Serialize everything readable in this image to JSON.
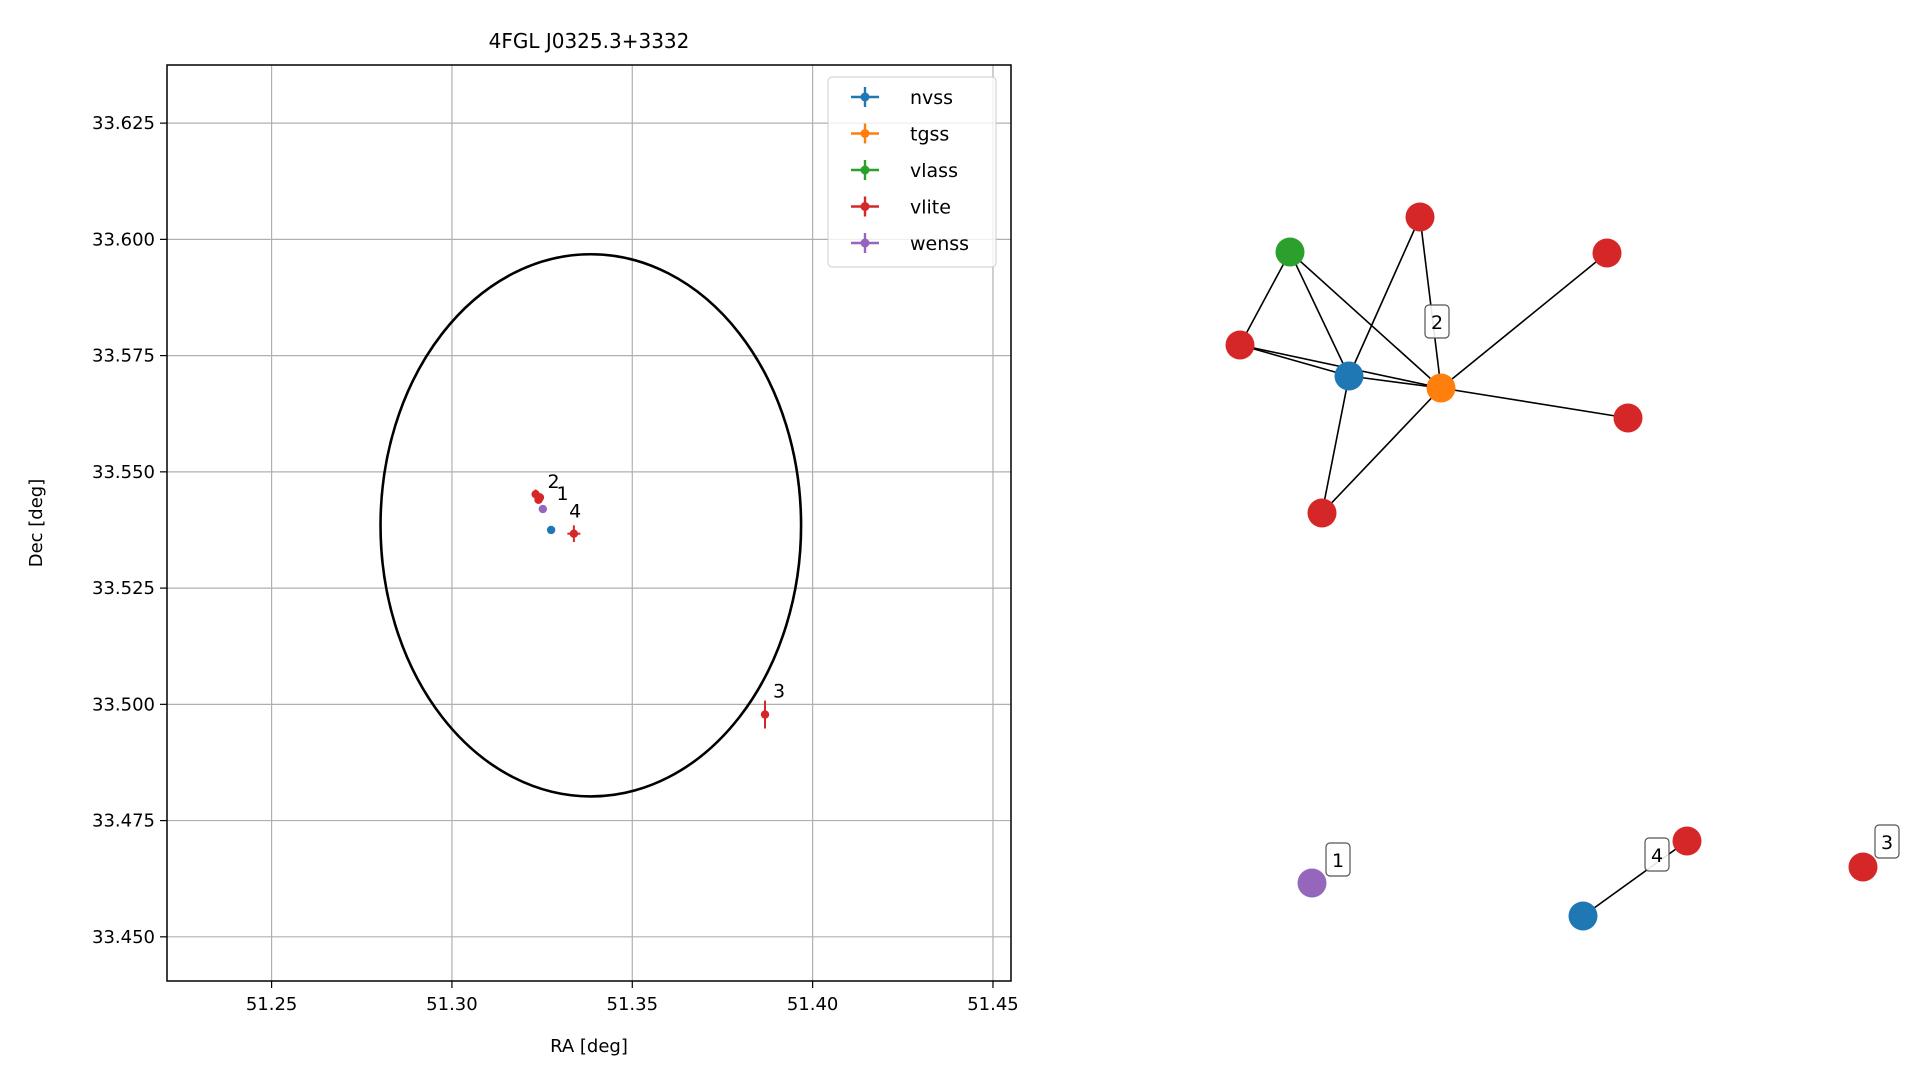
{
  "chart_data": [
    {
      "type": "scatter",
      "title": "4FGL J0325.3+3332",
      "xlabel": "RA [deg]",
      "ylabel": "Dec [deg]",
      "xlim": [
        51.221,
        51.455
      ],
      "ylim": [
        33.4405,
        33.6375
      ],
      "xticks": [
        "51.25",
        "51.30",
        "51.35",
        "51.40",
        "51.45"
      ],
      "yticks": [
        "33.450",
        "33.475",
        "33.500",
        "33.525",
        "33.550",
        "33.575",
        "33.600",
        "33.625"
      ],
      "grid": true,
      "legend_position": "top-right",
      "series": [
        {
          "name": "nvss",
          "color": "#1f77b4",
          "points": [
            {
              "x": 51.3275,
              "y": 33.5375,
              "xerr": 0.0005,
              "yerr": 0.0008
            }
          ]
        },
        {
          "name": "tgss",
          "color": "#ff7f0e",
          "points": []
        },
        {
          "name": "vlass",
          "color": "#2ca02c",
          "points": []
        },
        {
          "name": "vlite",
          "color": "#d62728",
          "points": [
            {
              "x": 51.3232,
              "y": 33.5452,
              "xerr": 0.0008,
              "yerr": 0.001
            },
            {
              "x": 51.3244,
              "y": 33.5445,
              "xerr": 0.0006,
              "yerr": 0.0009
            },
            {
              "x": 51.324,
              "y": 33.544,
              "xerr": 0.0004,
              "yerr": 0.0006
            },
            {
              "x": 51.3338,
              "y": 33.5367,
              "xerr": 0.0018,
              "yerr": 0.0018
            },
            {
              "x": 51.3868,
              "y": 33.4978,
              "xerr": 0.0006,
              "yerr": 0.003
            }
          ]
        },
        {
          "name": "wenss",
          "color": "#9467bd",
          "points": [
            {
              "x": 51.3252,
              "y": 33.542,
              "xerr": 0.0004,
              "yerr": 0.0007
            }
          ]
        }
      ],
      "circle": {
        "center": [
          51.3385,
          33.5385
        ],
        "radius": 0.0583
      },
      "annotations": [
        {
          "text": "2",
          "x": 51.3265,
          "y": 33.5465
        },
        {
          "text": "1",
          "x": 51.329,
          "y": 33.544
        },
        {
          "text": "4",
          "x": 51.3325,
          "y": 33.5402
        },
        {
          "text": "3",
          "x": 51.389,
          "y": 33.5015
        }
      ]
    },
    {
      "type": "network",
      "nodes": [
        {
          "id": "vlass_a",
          "color": "#2ca02c"
        },
        {
          "id": "vlite_a",
          "color": "#d62728"
        },
        {
          "id": "vlite_b",
          "color": "#d62728"
        },
        {
          "id": "vlite_c",
          "color": "#d62728"
        },
        {
          "id": "nvss_a",
          "color": "#1f77b4"
        },
        {
          "id": "tgss_a",
          "color": "#ff7f0e"
        },
        {
          "id": "vlite_d",
          "color": "#d62728"
        },
        {
          "id": "vlite_e",
          "color": "#d62728"
        },
        {
          "id": "wenss_a",
          "color": "#9467bd"
        },
        {
          "id": "nvss_b",
          "color": "#1f77b4"
        },
        {
          "id": "vlite_f",
          "color": "#d62728"
        },
        {
          "id": "vlite_g",
          "color": "#d62728"
        }
      ],
      "edges": [
        [
          "vlass_a",
          "vlite_b"
        ],
        [
          "vlass_a",
          "nvss_a"
        ],
        [
          "vlass_a",
          "tgss_a"
        ],
        [
          "vlite_a",
          "nvss_a"
        ],
        [
          "vlite_a",
          "tgss_a"
        ],
        [
          "vlite_b",
          "nvss_a"
        ],
        [
          "vlite_b",
          "tgss_a"
        ],
        [
          "nvss_a",
          "tgss_a"
        ],
        [
          "nvss_a",
          "vlite_e"
        ],
        [
          "tgss_a",
          "vlite_c"
        ],
        [
          "tgss_a",
          "vlite_d"
        ],
        [
          "tgss_a",
          "vlite_e"
        ],
        [
          "nvss_b",
          "vlite_f"
        ]
      ],
      "labels": [
        "2",
        "1",
        "4",
        "3"
      ]
    }
  ]
}
